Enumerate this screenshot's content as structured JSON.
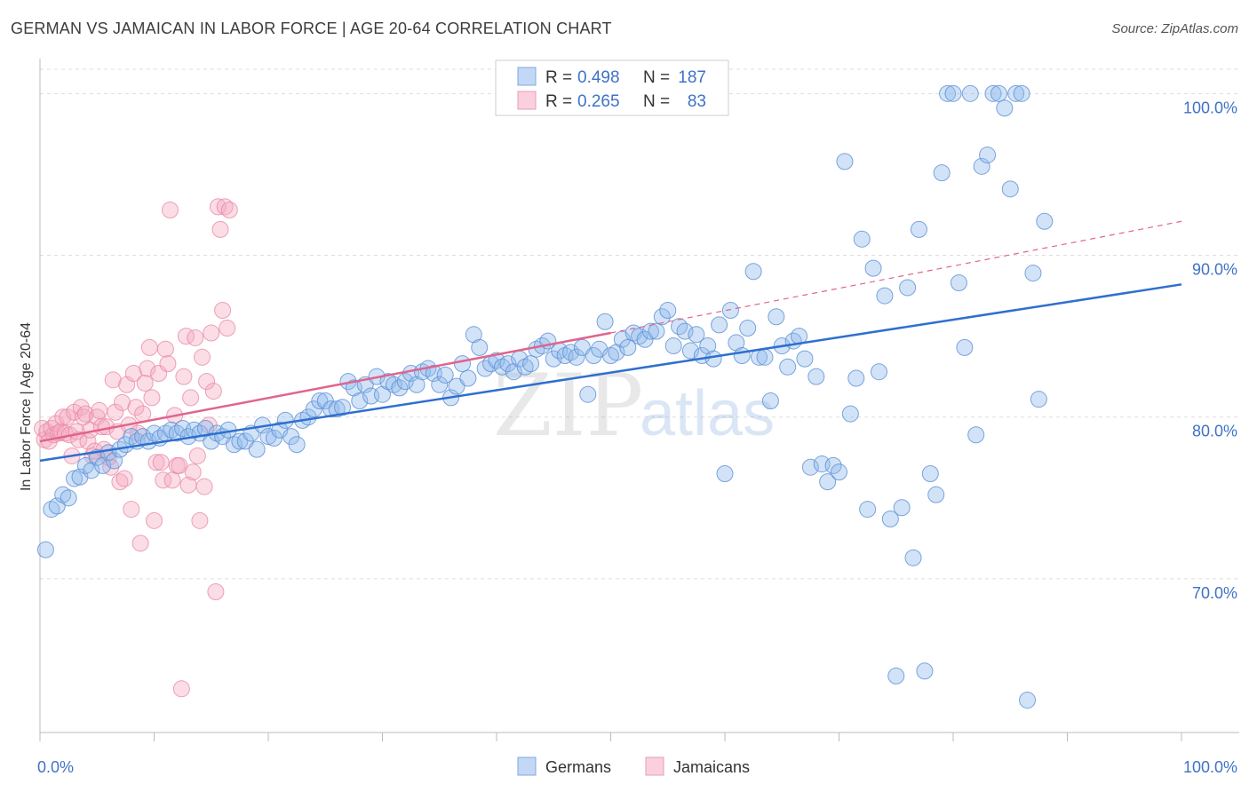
{
  "header": {
    "title": "GERMAN VS JAMAICAN IN LABOR FORCE | AGE 20-64 CORRELATION CHART",
    "source": "Source: ZipAtlas.com"
  },
  "watermark": {
    "zip": "ZIP",
    "atlas": "atlas"
  },
  "colors": {
    "blue": "#8fb8ec",
    "blue_stroke": "#5b8fd6",
    "blue_line": "#2f6fcf",
    "pink": "#f5a9c0",
    "pink_stroke": "#e88aa8",
    "pink_line": "#e0648c",
    "axis_text": "#3f72c6",
    "grid": "#dddddd"
  },
  "legend": {
    "rows": [
      {
        "r_label": "R =",
        "r_value": "0.498",
        "n_label": "N =",
        "n_value": "187"
      },
      {
        "r_label": "R =",
        "r_value": "0.265",
        "n_label": "N =",
        "n_value": "83"
      }
    ]
  },
  "bottom_legend": {
    "germans": "Germans",
    "jamaicans": "Jamaicans"
  },
  "chart_data": {
    "type": "scatter",
    "title": "GERMAN VS JAMAICAN IN LABOR FORCE | AGE 20-64 CORRELATION CHART",
    "xlabel": "",
    "ylabel": "In Labor Force | Age 20-64",
    "xlim": [
      0,
      100
    ],
    "ylim": [
      60.5,
      101.5
    ],
    "x_tick_labels": [
      "0.0%",
      "100.0%"
    ],
    "y_ticks": [
      70,
      80,
      90,
      100
    ],
    "y_tick_labels": [
      "70.0%",
      "80.0%",
      "90.0%",
      "100.0%"
    ],
    "series": [
      {
        "name": "Germans",
        "R": 0.498,
        "N": 187,
        "trend": {
          "x": [
            0,
            100
          ],
          "y": [
            77.3,
            88.2
          ],
          "dashed_to": null
        },
        "points": [
          [
            0.5,
            71.8
          ],
          [
            1,
            74.3
          ],
          [
            1.5,
            74.5
          ],
          [
            2,
            75.2
          ],
          [
            2.5,
            75
          ],
          [
            3,
            76.2
          ],
          [
            3.5,
            76.3
          ],
          [
            4,
            77
          ],
          [
            4.5,
            76.7
          ],
          [
            5,
            77.5
          ],
          [
            5.5,
            77
          ],
          [
            6,
            77.8
          ],
          [
            6.5,
            77.3
          ],
          [
            7,
            78
          ],
          [
            7.5,
            78.3
          ],
          [
            8,
            78.8
          ],
          [
            8.5,
            78.5
          ],
          [
            9,
            78.8
          ],
          [
            9.5,
            78.5
          ],
          [
            10,
            79
          ],
          [
            10.5,
            78.7
          ],
          [
            11,
            79
          ],
          [
            11.5,
            79.2
          ],
          [
            12,
            79
          ],
          [
            12.5,
            79.3
          ],
          [
            13,
            78.8
          ],
          [
            13.5,
            79.2
          ],
          [
            14,
            79
          ],
          [
            14.5,
            79.3
          ],
          [
            15,
            78.5
          ],
          [
            15.5,
            79
          ],
          [
            16,
            78.8
          ],
          [
            16.5,
            79.2
          ],
          [
            17,
            78.3
          ],
          [
            17.5,
            78.5
          ],
          [
            18,
            78.5
          ],
          [
            18.5,
            79
          ],
          [
            19,
            78
          ],
          [
            19.5,
            79.5
          ],
          [
            20,
            78.8
          ],
          [
            20.5,
            78.7
          ],
          [
            21,
            79.2
          ],
          [
            21.5,
            79.8
          ],
          [
            22,
            78.8
          ],
          [
            22.5,
            78.3
          ],
          [
            23,
            79.8
          ],
          [
            23.5,
            80
          ],
          [
            24,
            80.5
          ],
          [
            24.5,
            81
          ],
          [
            25,
            81
          ],
          [
            25.5,
            80.5
          ],
          [
            26,
            80.5
          ],
          [
            26.5,
            80.6
          ],
          [
            27,
            82.2
          ],
          [
            27.5,
            81.8
          ],
          [
            28,
            81
          ],
          [
            28.5,
            82
          ],
          [
            29,
            81.3
          ],
          [
            29.5,
            82.5
          ],
          [
            30,
            81.4
          ],
          [
            30.5,
            82.2
          ],
          [
            31,
            82
          ],
          [
            31.5,
            81.8
          ],
          [
            32,
            82.2
          ],
          [
            32.5,
            82.7
          ],
          [
            33,
            82
          ],
          [
            33.5,
            82.8
          ],
          [
            34,
            83
          ],
          [
            34.5,
            82.7
          ],
          [
            35,
            82
          ],
          [
            35.5,
            82.6
          ],
          [
            36,
            81.2
          ],
          [
            36.5,
            81.9
          ],
          [
            37,
            83.3
          ],
          [
            37.5,
            82.4
          ],
          [
            38,
            85.1
          ],
          [
            38.5,
            84.3
          ],
          [
            39,
            83
          ],
          [
            39.5,
            83.3
          ],
          [
            40,
            83.5
          ],
          [
            40.5,
            83.1
          ],
          [
            41,
            83.3
          ],
          [
            41.5,
            82.8
          ],
          [
            42,
            83.6
          ],
          [
            42.5,
            83.1
          ],
          [
            43,
            83.3
          ],
          [
            43.5,
            84.2
          ],
          [
            44,
            84.4
          ],
          [
            44.5,
            84.7
          ],
          [
            45,
            83.6
          ],
          [
            45.5,
            84.1
          ],
          [
            46,
            83.8
          ],
          [
            46.5,
            84
          ],
          [
            47,
            83.7
          ],
          [
            47.5,
            84.3
          ],
          [
            48,
            81.4
          ],
          [
            48.5,
            83.8
          ],
          [
            49,
            84.2
          ],
          [
            49.5,
            85.9
          ],
          [
            50,
            83.8
          ],
          [
            50.5,
            84
          ],
          [
            51,
            84.8
          ],
          [
            51.5,
            84.3
          ],
          [
            52,
            85.2
          ],
          [
            52.5,
            85
          ],
          [
            53,
            84.8
          ],
          [
            53.5,
            85.3
          ],
          [
            54,
            85.3
          ],
          [
            54.5,
            86.2
          ],
          [
            55,
            86.6
          ],
          [
            55.5,
            84.4
          ],
          [
            56,
            85.6
          ],
          [
            56.5,
            85.3
          ],
          [
            57,
            84.1
          ],
          [
            57.5,
            85.1
          ],
          [
            58,
            83.8
          ],
          [
            58.5,
            84.4
          ],
          [
            59,
            83.6
          ],
          [
            59.5,
            85.7
          ],
          [
            60,
            76.5
          ],
          [
            60.5,
            86.6
          ],
          [
            61,
            84.6
          ],
          [
            61.5,
            83.8
          ],
          [
            62,
            85.5
          ],
          [
            62.5,
            89
          ],
          [
            63,
            83.7
          ],
          [
            63.5,
            83.7
          ],
          [
            64,
            81
          ],
          [
            64.5,
            86.2
          ],
          [
            65,
            84.4
          ],
          [
            65.5,
            83.1
          ],
          [
            66,
            84.7
          ],
          [
            66.5,
            85
          ],
          [
            67,
            83.6
          ],
          [
            67.5,
            76.9
          ],
          [
            68,
            82.5
          ],
          [
            68.5,
            77.1
          ],
          [
            69,
            76
          ],
          [
            69.5,
            77
          ],
          [
            70,
            76.6
          ],
          [
            70.5,
            95.8
          ],
          [
            71,
            80.2
          ],
          [
            71.5,
            82.4
          ],
          [
            72,
            91
          ],
          [
            72.5,
            74.3
          ],
          [
            73,
            89.2
          ],
          [
            73.5,
            82.8
          ],
          [
            74,
            87.5
          ],
          [
            74.5,
            73.7
          ],
          [
            75,
            64
          ],
          [
            75.5,
            74.4
          ],
          [
            76,
            88
          ],
          [
            76.5,
            71.3
          ],
          [
            77,
            91.6
          ],
          [
            77.5,
            64.3
          ],
          [
            78,
            76.5
          ],
          [
            78.5,
            75.2
          ],
          [
            79,
            95.1
          ],
          [
            79.5,
            100
          ],
          [
            80,
            100
          ],
          [
            80.5,
            88.3
          ],
          [
            81,
            84.3
          ],
          [
            81.5,
            100
          ],
          [
            82,
            78.9
          ],
          [
            82.5,
            95.5
          ],
          [
            83,
            96.2
          ],
          [
            83.5,
            100
          ],
          [
            84,
            100
          ],
          [
            84.5,
            99.1
          ],
          [
            85,
            94.1
          ],
          [
            85.5,
            100
          ],
          [
            86,
            100
          ],
          [
            86.5,
            62.5
          ],
          [
            87,
            88.9
          ],
          [
            87.5,
            81.1
          ],
          [
            88,
            92.1
          ]
        ]
      },
      {
        "name": "Jamaicans",
        "R": 0.265,
        "N": 83,
        "trend": {
          "x": [
            0,
            50
          ],
          "y": [
            78.5,
            85.2
          ],
          "dashed_to": [
            100,
            92.1
          ]
        },
        "points": [
          [
            0.2,
            79.3
          ],
          [
            0.4,
            78.6
          ],
          [
            0.6,
            79.1
          ],
          [
            0.8,
            78.5
          ],
          [
            1,
            79.3
          ],
          [
            1.2,
            78.9
          ],
          [
            1.4,
            79.6
          ],
          [
            1.6,
            79
          ],
          [
            1.8,
            79.1
          ],
          [
            2,
            80
          ],
          [
            2.2,
            79
          ],
          [
            2.4,
            80
          ],
          [
            2.6,
            78.9
          ],
          [
            2.8,
            77.6
          ],
          [
            3,
            80.3
          ],
          [
            3.2,
            79.1
          ],
          [
            3.4,
            78.6
          ],
          [
            3.6,
            80.6
          ],
          [
            3.8,
            80
          ],
          [
            4,
            80.2
          ],
          [
            4.2,
            78.5
          ],
          [
            4.4,
            79.2
          ],
          [
            4.6,
            77.6
          ],
          [
            4.8,
            77.9
          ],
          [
            5,
            80
          ],
          [
            5.2,
            80.4
          ],
          [
            5.4,
            79.4
          ],
          [
            5.6,
            78
          ],
          [
            5.8,
            79.4
          ],
          [
            6,
            77.5
          ],
          [
            6.2,
            76.9
          ],
          [
            6.4,
            82.3
          ],
          [
            6.6,
            80.3
          ],
          [
            6.8,
            79.1
          ],
          [
            7,
            76
          ],
          [
            7.2,
            80.9
          ],
          [
            7.4,
            76.2
          ],
          [
            7.6,
            82
          ],
          [
            7.8,
            79.5
          ],
          [
            8,
            74.3
          ],
          [
            8.2,
            82.7
          ],
          [
            8.4,
            80.6
          ],
          [
            8.6,
            79
          ],
          [
            8.8,
            72.2
          ],
          [
            9,
            80.2
          ],
          [
            9.2,
            82.1
          ],
          [
            9.4,
            83
          ],
          [
            9.6,
            84.3
          ],
          [
            9.8,
            81.2
          ],
          [
            10,
            73.6
          ],
          [
            10.2,
            77.2
          ],
          [
            10.4,
            82.7
          ],
          [
            10.6,
            77.2
          ],
          [
            10.8,
            76.1
          ],
          [
            11,
            84.2
          ],
          [
            11.2,
            83.3
          ],
          [
            11.4,
            92.8
          ],
          [
            11.6,
            76.1
          ],
          [
            11.8,
            80.1
          ],
          [
            12,
            77
          ],
          [
            12.2,
            77
          ],
          [
            12.4,
            63.2
          ],
          [
            12.6,
            82.5
          ],
          [
            12.8,
            85
          ],
          [
            13,
            75.8
          ],
          [
            13.2,
            81.2
          ],
          [
            13.4,
            76.6
          ],
          [
            13.6,
            84.9
          ],
          [
            13.8,
            77.6
          ],
          [
            14,
            73.6
          ],
          [
            14.2,
            83.7
          ],
          [
            14.4,
            75.7
          ],
          [
            14.6,
            82.2
          ],
          [
            14.8,
            79.5
          ],
          [
            15,
            85.2
          ],
          [
            15.2,
            81.6
          ],
          [
            15.4,
            69.2
          ],
          [
            15.6,
            93
          ],
          [
            15.8,
            91.6
          ],
          [
            16,
            86.6
          ],
          [
            16.2,
            93
          ],
          [
            16.4,
            85.5
          ],
          [
            16.6,
            92.8
          ]
        ]
      }
    ]
  }
}
